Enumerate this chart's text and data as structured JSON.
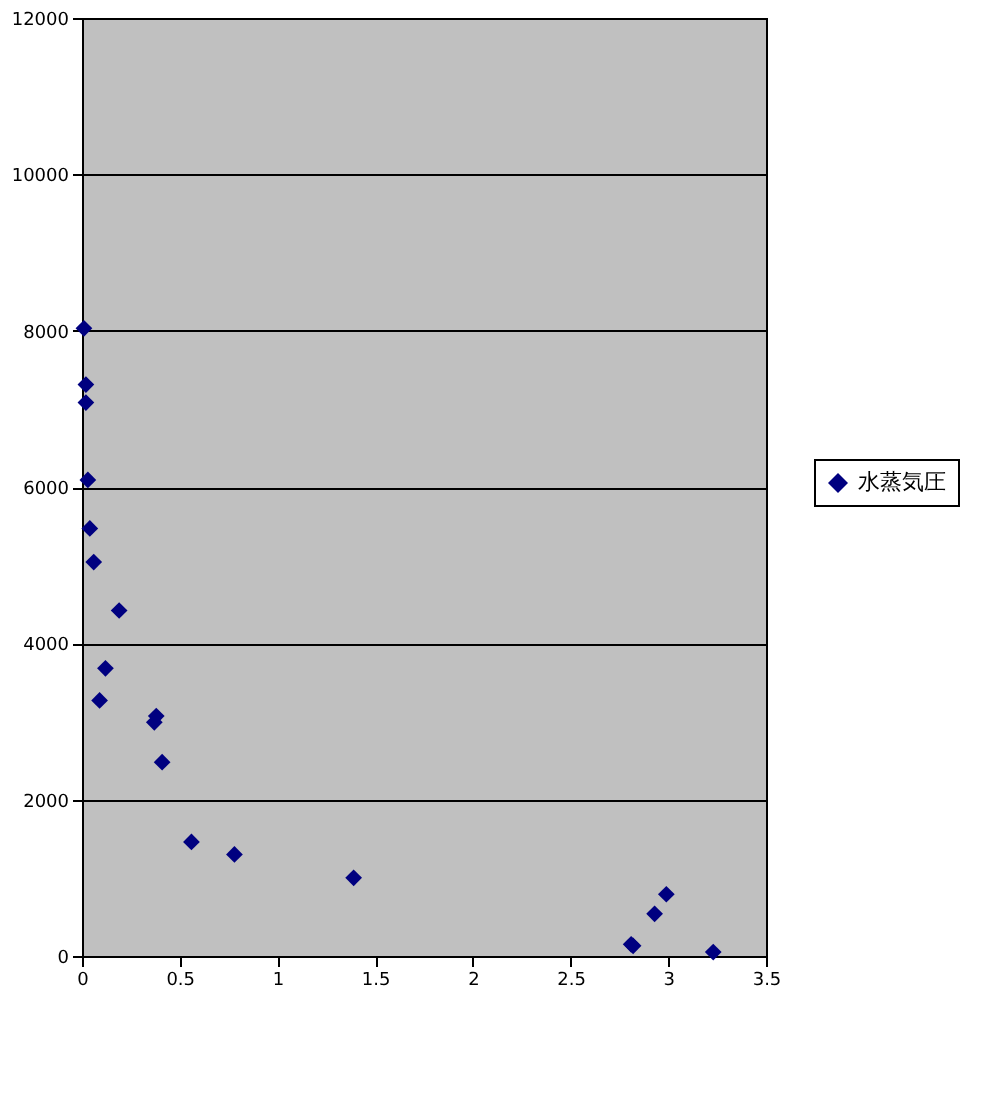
{
  "chart_data": {
    "type": "scatter",
    "x": [
      0.01,
      0.02,
      0.02,
      0.03,
      0.04,
      0.06,
      0.19,
      0.12,
      0.09,
      0.38,
      0.37,
      0.41,
      0.56,
      0.78,
      1.39,
      2.81,
      2.82,
      2.93,
      2.99,
      3.23
    ],
    "series": [
      {
        "name": "水蒸気圧",
        "color": "#000080",
        "values": [
          8030,
          7310,
          7080,
          6090,
          5470,
          5040,
          4420,
          3680,
          3270,
          3070,
          2990,
          2480,
          1460,
          1300,
          1000,
          150,
          130,
          540,
          790,
          50
        ]
      }
    ],
    "xlim": [
      0,
      3.5
    ],
    "xticks": [
      0,
      0.5,
      1,
      1.5,
      2,
      2.5,
      3,
      3.5
    ],
    "ylim": [
      0,
      12000
    ],
    "yticks": [
      0,
      2000,
      4000,
      6000,
      8000,
      10000,
      12000
    ],
    "grid": "y",
    "legend": "right",
    "marker": "diamond"
  }
}
